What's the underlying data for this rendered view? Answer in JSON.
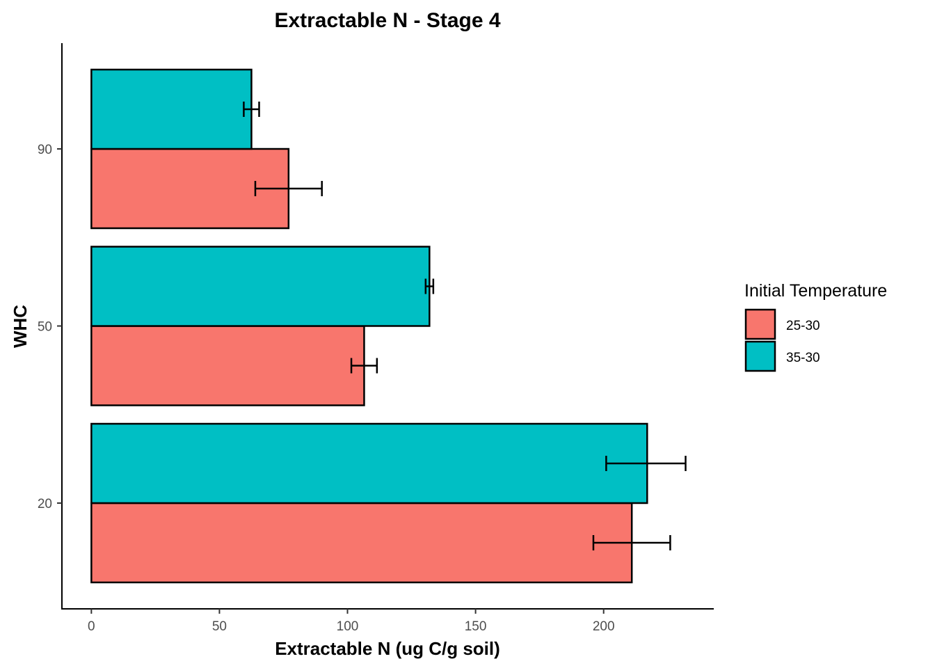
{
  "chart_data": {
    "type": "bar",
    "orientation": "horizontal",
    "title": "Extractable N - Stage 4",
    "xlabel": "Extractable N (ug C/g soil)",
    "ylabel": "WHC",
    "categories": [
      "20",
      "50",
      "90"
    ],
    "xlim": [
      -11.5,
      243
    ],
    "x_ticks": [
      0,
      50,
      100,
      150,
      200
    ],
    "series": [
      {
        "name": "25-30",
        "color": "#F8766D",
        "values": [
          211,
          106.5,
          77
        ],
        "error_low": [
          196,
          101.5,
          64
        ],
        "error_high": [
          226,
          111.5,
          90
        ]
      },
      {
        "name": "35-30",
        "color": "#00BFC4",
        "values": [
          217,
          132,
          62.5
        ],
        "error_low": [
          201,
          130.5,
          59.5
        ],
        "error_high": [
          232,
          133.5,
          65.5
        ]
      }
    ],
    "legend": {
      "title": "Initial Temperature",
      "position": "right"
    },
    "grid": false
  }
}
